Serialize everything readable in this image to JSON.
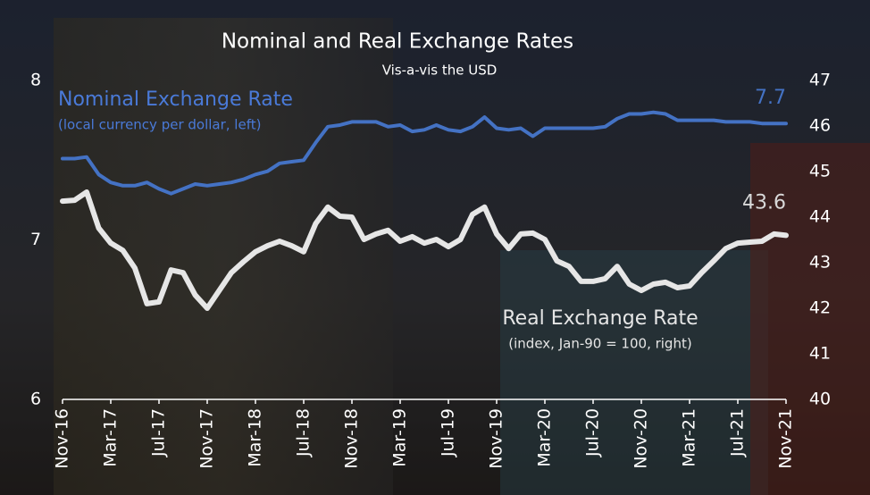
{
  "chart_data": {
    "type": "line",
    "title": "Nominal and Real Exchange Rates",
    "subtitle": "Vis-a-vis the USD",
    "categories": [
      "Nov-16",
      null,
      null,
      null,
      "Mar-17",
      null,
      null,
      null,
      "Jul-17",
      null,
      null,
      null,
      "Nov-17",
      null,
      null,
      null,
      "Mar-18",
      null,
      null,
      null,
      "Jul-18",
      null,
      null,
      null,
      "Nov-18",
      null,
      null,
      null,
      "Mar-19",
      null,
      null,
      null,
      "Jul-19",
      null,
      null,
      null,
      "Nov-19",
      null,
      null,
      null,
      "Mar-20",
      null,
      null,
      null,
      "Jul-20",
      null,
      null,
      null,
      "Nov-20",
      null,
      null,
      null,
      "Mar-21",
      null,
      null,
      null,
      "Jul-21",
      null,
      null,
      null,
      "Nov-21"
    ],
    "ylim": [
      6,
      8
    ],
    "yticks": [
      6,
      7,
      8
    ],
    "y2lim": [
      40,
      47
    ],
    "y2ticks": [
      40,
      41,
      42,
      43,
      44,
      45,
      46,
      47
    ],
    "series": [
      {
        "name": "Nominal Exchange Rate",
        "note": "(local currency per dollar, left)",
        "color": "#4472c4",
        "axis": "y",
        "values": [
          7.51,
          7.51,
          7.52,
          7.41,
          7.36,
          7.34,
          7.34,
          7.36,
          7.32,
          7.29,
          7.32,
          7.35,
          7.34,
          7.35,
          7.36,
          7.38,
          7.41,
          7.43,
          7.48,
          7.49,
          7.5,
          7.61,
          7.71,
          7.72,
          7.74,
          7.74,
          7.74,
          7.71,
          7.72,
          7.68,
          7.69,
          7.72,
          7.69,
          7.68,
          7.71,
          7.77,
          7.7,
          7.69,
          7.7,
          7.65,
          7.7,
          7.7,
          7.7,
          7.7,
          7.7,
          7.71,
          7.76,
          7.79,
          7.79,
          7.8,
          7.79,
          7.75,
          7.75,
          7.75,
          7.75,
          7.74,
          7.74,
          7.74,
          7.73,
          7.73,
          7.73
        ],
        "value_labels": [
          null,
          null,
          null,
          null,
          null,
          null,
          null,
          null,
          null,
          null,
          null,
          null,
          null,
          null,
          null,
          null,
          null,
          null,
          null,
          null,
          null,
          null,
          null,
          null,
          null,
          null,
          null,
          null,
          null,
          null,
          null,
          null,
          null,
          null,
          null,
          null,
          null,
          null,
          null,
          null,
          null,
          null,
          null,
          null,
          null,
          null,
          null,
          null,
          null,
          null,
          null,
          null,
          null,
          null,
          null,
          null,
          null,
          null,
          null,
          null,
          "7.7"
        ]
      },
      {
        "name": "Real Exchange Rate",
        "note": "(index, Jan-90 = 100, right)",
        "color": "#e6e6e6",
        "axis": "y2",
        "values": [
          44.35,
          44.37,
          44.55,
          43.76,
          43.43,
          43.27,
          42.88,
          42.1,
          42.14,
          42.84,
          42.78,
          42.29,
          42.0,
          42.39,
          42.78,
          43.02,
          43.24,
          43.37,
          43.47,
          43.37,
          43.24,
          43.86,
          44.22,
          44.02,
          44.0,
          43.51,
          43.63,
          43.71,
          43.47,
          43.57,
          43.43,
          43.51,
          43.35,
          43.51,
          44.06,
          44.22,
          43.63,
          43.31,
          43.63,
          43.65,
          43.51,
          43.04,
          42.92,
          42.59,
          42.59,
          42.65,
          42.92,
          42.53,
          42.39,
          42.53,
          42.57,
          42.45,
          42.49,
          42.78,
          43.04,
          43.31,
          43.43,
          43.45,
          43.47,
          43.63,
          43.6
        ]
      }
    ]
  }
}
